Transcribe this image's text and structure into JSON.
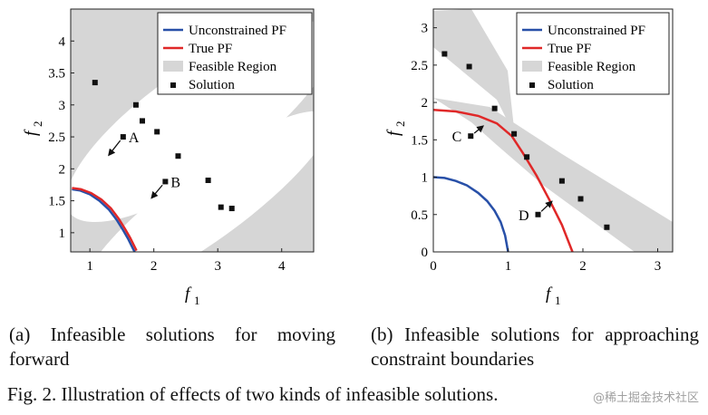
{
  "chart_data": [
    {
      "id": "a",
      "type": "line",
      "xlabel": "f",
      "xlabel_sub": "1",
      "ylabel": "f",
      "ylabel_sub": "2",
      "xlim": [
        0.7,
        4.5
      ],
      "ylim": [
        0.7,
        4.5
      ],
      "xticks": [
        1,
        2,
        3,
        4
      ],
      "yticks": [
        1,
        1.5,
        2,
        2.5,
        3,
        3.5,
        4
      ],
      "legend": [
        "Unconstrained PF",
        "True PF",
        "Feasible Region",
        "Solution"
      ],
      "series": [
        {
          "name": "Unconstrained PF",
          "color": "#2850a8",
          "x": [
            0.72,
            0.85,
            1.0,
            1.15,
            1.3,
            1.42,
            1.52,
            1.6,
            1.66,
            1.7
          ],
          "y": [
            1.68,
            1.66,
            1.6,
            1.5,
            1.36,
            1.2,
            1.04,
            0.9,
            0.78,
            0.7
          ]
        },
        {
          "name": "True PF",
          "color": "#e02828",
          "x": [
            0.72,
            0.86,
            1.02,
            1.18,
            1.33,
            1.45,
            1.55,
            1.63,
            1.69,
            1.73
          ],
          "y": [
            1.7,
            1.68,
            1.62,
            1.52,
            1.38,
            1.22,
            1.06,
            0.92,
            0.8,
            0.72
          ]
        }
      ],
      "solutions": [
        {
          "x": 1.08,
          "y": 3.35
        },
        {
          "x": 1.72,
          "y": 3.0
        },
        {
          "x": 1.82,
          "y": 2.75
        },
        {
          "x": 2.05,
          "y": 2.58
        },
        {
          "x": 2.38,
          "y": 2.2
        },
        {
          "x": 2.85,
          "y": 1.82
        },
        {
          "x": 3.05,
          "y": 1.4
        },
        {
          "x": 3.22,
          "y": 1.38
        },
        {
          "x": 1.52,
          "y": 2.5
        },
        {
          "x": 2.18,
          "y": 1.8
        }
      ],
      "annotations": [
        {
          "label": "A",
          "x": 1.52,
          "y": 2.5,
          "arrow_to": [
            1.3,
            2.22
          ]
        },
        {
          "label": "B",
          "x": 2.18,
          "y": 1.8,
          "arrow_to": [
            1.97,
            1.55
          ]
        }
      ]
    },
    {
      "id": "b",
      "type": "line",
      "xlabel": "f",
      "xlabel_sub": "1",
      "ylabel": "f",
      "ylabel_sub": "2",
      "xlim": [
        0,
        3.2
      ],
      "ylim": [
        0,
        3.25
      ],
      "xticks": [
        0,
        1,
        2,
        3
      ],
      "yticks": [
        0,
        0.5,
        1,
        1.5,
        2,
        2.5,
        3
      ],
      "legend": [
        "Unconstrained PF",
        "True PF",
        "Feasible Region",
        "Solution"
      ],
      "series": [
        {
          "name": "Unconstrained PF",
          "color": "#2850a8",
          "x": [
            0,
            0.15,
            0.3,
            0.45,
            0.6,
            0.72,
            0.82,
            0.9,
            0.96,
            1.0
          ],
          "y": [
            1.0,
            0.99,
            0.95,
            0.89,
            0.79,
            0.68,
            0.55,
            0.4,
            0.22,
            0.0
          ]
        },
        {
          "name": "True PF",
          "color": "#e02828",
          "x": [
            0,
            0.3,
            0.6,
            0.85,
            1.05,
            1.2,
            1.38,
            1.55,
            1.72,
            1.86
          ],
          "y": [
            1.9,
            1.88,
            1.82,
            1.72,
            1.55,
            1.32,
            1.02,
            0.7,
            0.36,
            0.0
          ]
        }
      ],
      "solutions": [
        {
          "x": 0.15,
          "y": 2.65
        },
        {
          "x": 0.48,
          "y": 2.48
        },
        {
          "x": 0.82,
          "y": 1.92
        },
        {
          "x": 1.08,
          "y": 1.58
        },
        {
          "x": 1.25,
          "y": 1.27
        },
        {
          "x": 1.72,
          "y": 0.95
        },
        {
          "x": 1.97,
          "y": 0.71
        },
        {
          "x": 2.32,
          "y": 0.33
        },
        {
          "x": 0.5,
          "y": 1.55
        },
        {
          "x": 1.4,
          "y": 0.5
        }
      ],
      "annotations": [
        {
          "label": "C",
          "x": 0.5,
          "y": 1.55,
          "arrow_to": [
            0.66,
            1.68
          ]
        },
        {
          "label": "D",
          "x": 1.4,
          "y": 0.5,
          "arrow_to": [
            1.58,
            0.67
          ]
        }
      ]
    }
  ],
  "captions": {
    "a": "(a) Infeasible solutions for moving forward",
    "b": "(b) Infeasible solutions for approaching constraint boundaries",
    "figure": "Fig. 2.  Illustration of effects of two kinds of infeasible solutions."
  },
  "watermark": "@稀土掘金技术社区",
  "colors": {
    "feasible": "#d6d6d6",
    "solution": "#111111",
    "axis": "#222222"
  }
}
